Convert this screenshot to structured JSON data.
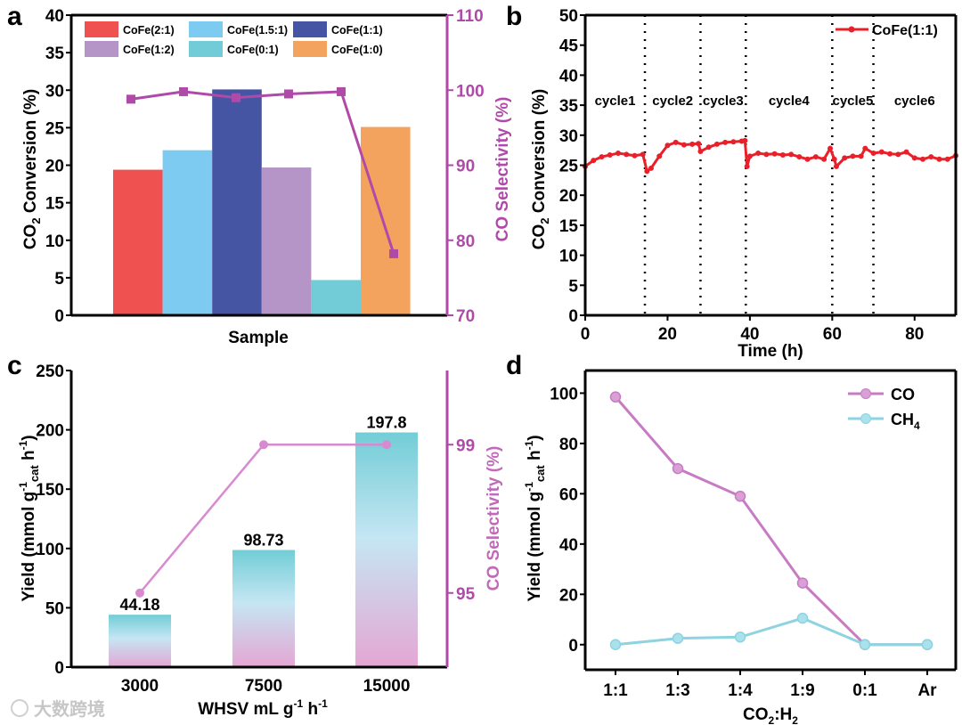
{
  "chart_data": [
    {
      "panel": "a",
      "type": "bar",
      "title": "",
      "xlabel": "Sample",
      "ylabel": "CO2 Conversion (%)",
      "y2label": "CO Selectivity (%)",
      "ylim": [
        0,
        40
      ],
      "yticks": [
        0,
        5,
        10,
        15,
        20,
        25,
        30,
        35,
        40
      ],
      "y2lim": [
        70,
        110
      ],
      "y2ticks": [
        70,
        80,
        90,
        100,
        110
      ],
      "categories": [
        "CoFe(2:1)",
        "CoFe(1.5:1)",
        "CoFe(1:1)",
        "CoFe(1:2)",
        "CoFe(0:1)",
        "CoFe(1:0)"
      ],
      "values": [
        19.4,
        22.0,
        30.1,
        19.7,
        4.7,
        25.1
      ],
      "colors": [
        "#ef5050",
        "#7dcbf0",
        "#4654a4",
        "#b595c8",
        "#72ccd8",
        "#f4a35e"
      ],
      "selectivity": [
        98.8,
        99.8,
        99.0,
        99.5,
        99.8,
        78.2
      ],
      "selectivity_color": "#b04aa8",
      "legend": "top"
    },
    {
      "panel": "b",
      "type": "line",
      "xlabel": "Time (h)",
      "ylabel": "CO2 Conversion (%)",
      "xlim": [
        0,
        90
      ],
      "xticks": [
        0,
        20,
        40,
        60,
        80
      ],
      "ylim": [
        0,
        50
      ],
      "yticks": [
        0,
        5,
        10,
        15,
        20,
        25,
        30,
        35,
        40,
        45,
        50
      ],
      "series_name": "CoFe(1:1)",
      "color": "#e8202a",
      "legend": "top-right",
      "cycle_boundaries": [
        14.5,
        28,
        39,
        60,
        70
      ],
      "cycle_labels": [
        "cycle1",
        "cycle2",
        "cycle3",
        "cycle4",
        "cycle5",
        "cycle6"
      ],
      "x": [
        0,
        2,
        4,
        6,
        8,
        10,
        12,
        14,
        15,
        16,
        18,
        20,
        22,
        24,
        26,
        27.5,
        28,
        30,
        32,
        34,
        36,
        38,
        38.8,
        39.3,
        40,
        42,
        44,
        46,
        48,
        50,
        52,
        54,
        56,
        58,
        59.5,
        60.5,
        61,
        63,
        65,
        67,
        68,
        70,
        72,
        74,
        76,
        78,
        80,
        82,
        84,
        86,
        88,
        90
      ],
      "y": [
        24.8,
        25.8,
        26.4,
        26.7,
        27.0,
        26.8,
        26.6,
        26.8,
        24.0,
        24.5,
        26.5,
        28.3,
        28.8,
        28.4,
        28.5,
        28.6,
        27.3,
        28.0,
        28.5,
        28.8,
        28.9,
        29.0,
        29.1,
        24.8,
        26.5,
        27.0,
        26.8,
        26.9,
        26.7,
        26.8,
        26.4,
        26.0,
        26.4,
        26.0,
        27.8,
        26.0,
        24.8,
        26.2,
        26.5,
        26.5,
        27.8,
        27.0,
        27.2,
        26.9,
        26.8,
        27.2,
        26.2,
        26.0,
        26.4,
        26.0,
        26.0,
        26.6
      ]
    },
    {
      "panel": "c",
      "type": "bar",
      "xlabel": "WHSV mL g-1 h-1",
      "ylabel": "Yield (mmol g-1cat h-1)",
      "y2label": "CO Selectivity (%)",
      "ylim": [
        0,
        250
      ],
      "yticks": [
        0,
        50,
        100,
        150,
        200,
        250
      ],
      "y2lim": [
        93,
        101
      ],
      "y2ticks": [
        95,
        99
      ],
      "categories": [
        "3000",
        "7500",
        "15000"
      ],
      "values": [
        44.18,
        98.73,
        197.8
      ],
      "value_labels": [
        "44.18",
        "98.73",
        "197.8"
      ],
      "selectivity": [
        95,
        99,
        99
      ],
      "selectivity_color": "#d88ad0"
    },
    {
      "panel": "d",
      "type": "line",
      "xlabel": "CO2:H2",
      "ylabel": "Yield (mmol g-1cat h-1)",
      "ylim": [
        -10,
        109
      ],
      "yticks": [
        0,
        20,
        40,
        60,
        80,
        100
      ],
      "categories": [
        "1:1",
        "1:3",
        "1:4",
        "1:9",
        "0:1",
        "Ar"
      ],
      "legend": "top-right",
      "series": [
        {
          "name": "CO",
          "values": [
            98.5,
            70,
            59,
            24.5,
            0,
            0
          ],
          "color": "#c77bc4",
          "marker": "#d9a0d6"
        },
        {
          "name": "CH4",
          "values": [
            0,
            2.5,
            3,
            10.5,
            0,
            0
          ],
          "color": "#8dd3e0",
          "marker": "#a9e2ec"
        }
      ]
    }
  ],
  "panel_labels": [
    "a",
    "b",
    "c",
    "d"
  ],
  "watermark": "大数跨境"
}
